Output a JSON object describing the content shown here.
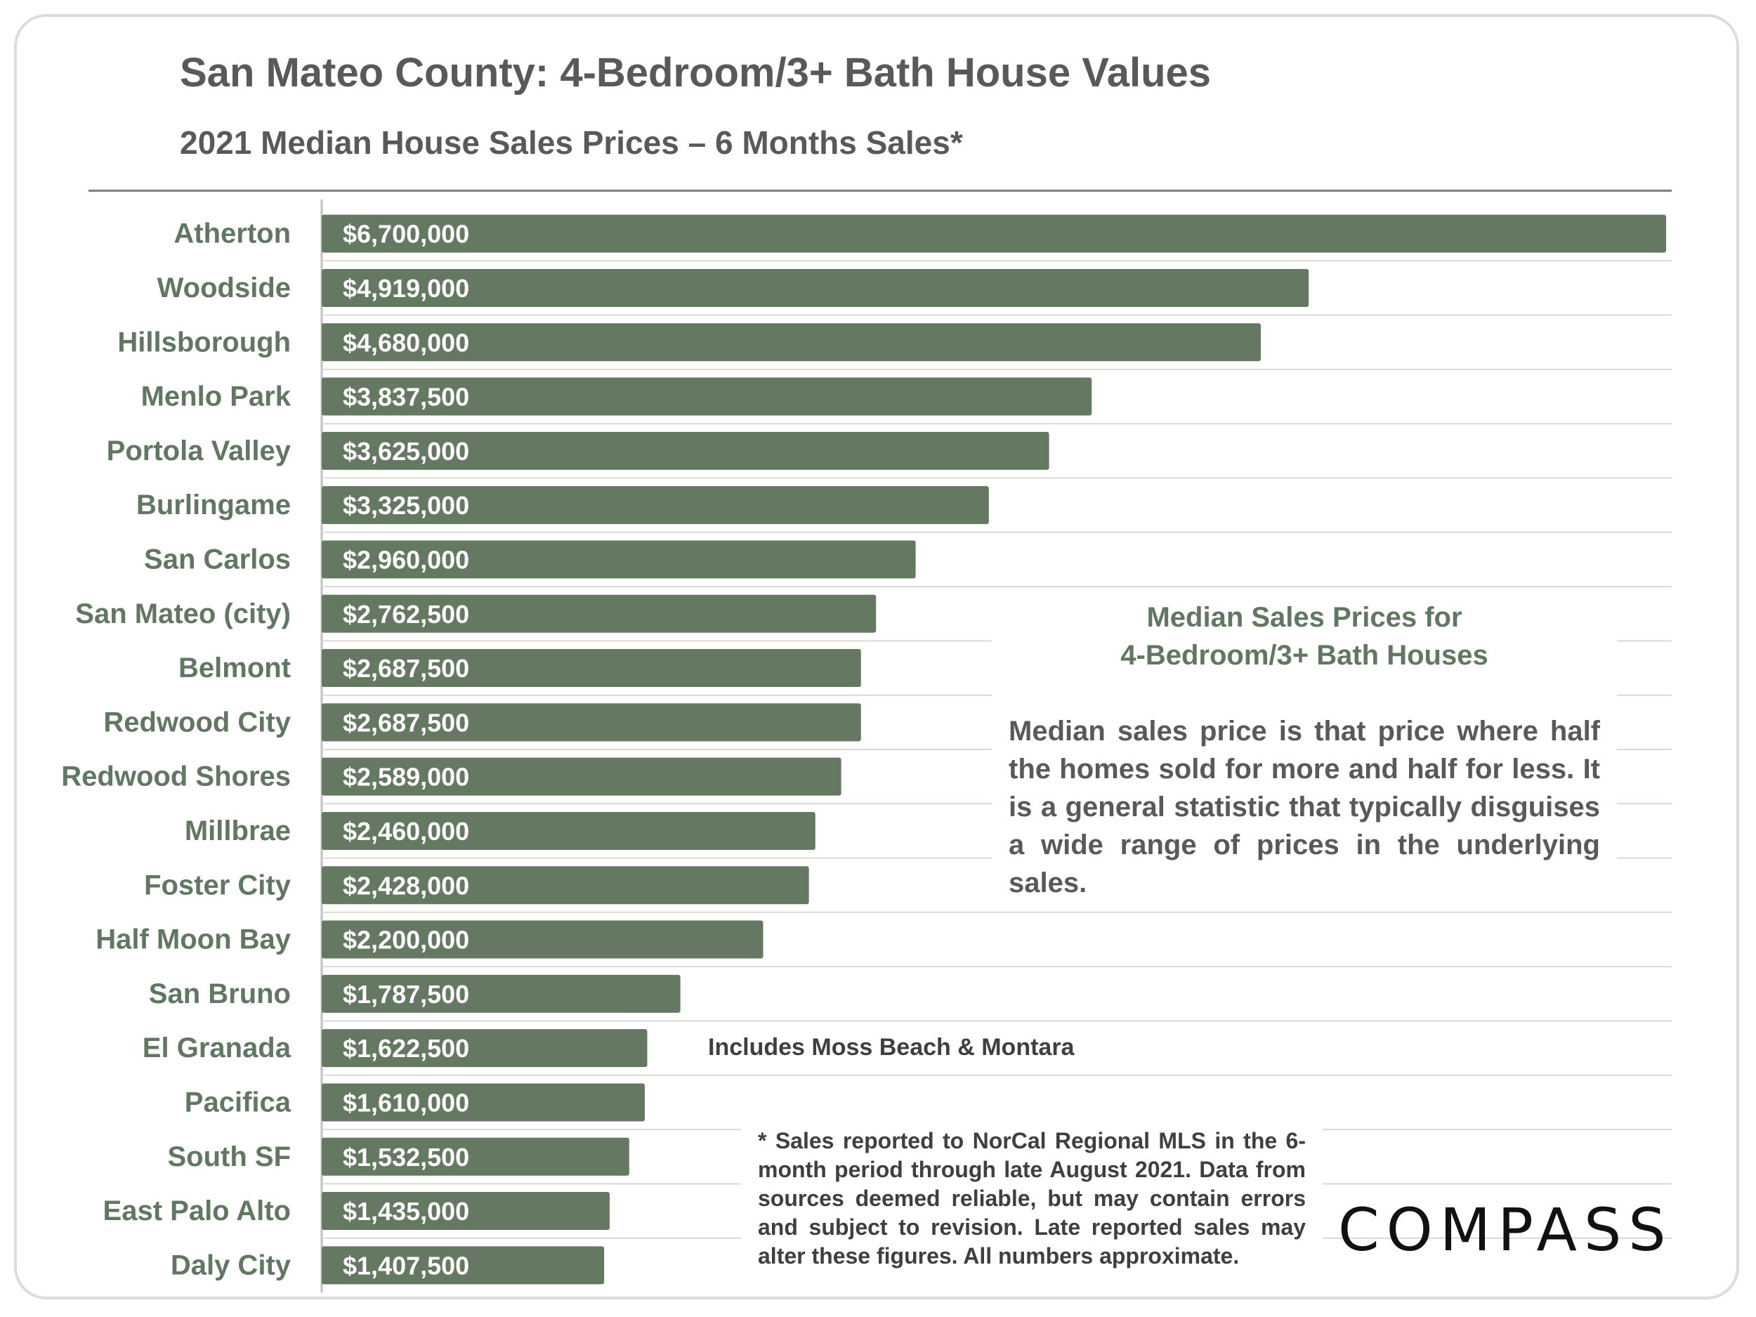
{
  "header": {
    "title": "San Mateo County: 4-Bedroom/3+ Bath House Values",
    "subtitle": "2021 Median House Sales Prices – 6 Months Sales*"
  },
  "colors": {
    "bar": "#647862",
    "label": "#617762",
    "text": "#595959",
    "grid": "#d9dad4"
  },
  "chart_data": {
    "type": "bar",
    "orientation": "horizontal",
    "title": "San Mateo County: 4-Bedroom/3+ Bath House Values",
    "subtitle": "2021 Median House Sales Prices – 6 Months Sales*",
    "categories": [
      "Atherton",
      "Woodside",
      "Hillsborough",
      "Menlo Park",
      "Portola Valley",
      "Burlingame",
      "San Carlos",
      "San Mateo (city)",
      "Belmont",
      "Redwood City",
      "Redwood Shores",
      "Millbrae",
      "Foster City",
      "Half Moon Bay",
      "San Bruno",
      "El Granada",
      "Pacifica",
      "South SF",
      "East Palo Alto",
      "Daly City"
    ],
    "values": [
      6700000,
      4919000,
      4680000,
      3837500,
      3625000,
      3325000,
      2960000,
      2762500,
      2687500,
      2687500,
      2589000,
      2460000,
      2428000,
      2200000,
      1787500,
      1622500,
      1610000,
      1532500,
      1435000,
      1407500
    ],
    "value_labels": [
      "$6,700,000",
      "$4,919,000",
      "$4,680,000",
      "$3,837,500",
      "$3,625,000",
      "$3,325,000",
      "$2,960,000",
      "$2,762,500",
      "$2,687,500",
      "$2,687,500",
      "$2,589,000",
      "$2,460,000",
      "$2,428,000",
      "$2,200,000",
      "$1,787,500",
      "$1,622,500",
      "$1,610,000",
      "$1,532,500",
      "$1,435,000",
      "$1,407,500"
    ],
    "xlim": [
      0,
      6700000
    ],
    "grid": true,
    "legend": "none"
  },
  "callout": {
    "heading_line1": "Median Sales Prices for",
    "heading_line2": "4-Bedroom/3+ Bath Houses",
    "body": "Median sales price is that price where half the homes sold for more and half for less. It is a general statistic that typically disguises a wide range of prices in the underlying sales."
  },
  "annotation": "Includes Moss Beach & Montara",
  "footnote": "* Sales reported to NorCal Regional MLS in the 6-month period through late August 2021. Data from sources deemed reliable, but may contain errors and subject to revision. Late reported sales may alter these figures. All numbers approximate.",
  "logo": "COMPASS"
}
